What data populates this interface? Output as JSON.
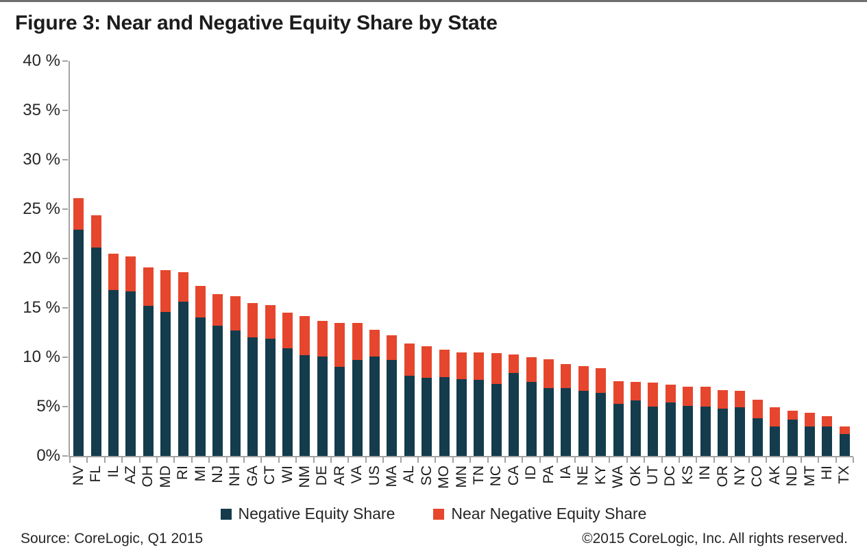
{
  "title": "Figure 3: Near and Negative Equity Share by State",
  "footer": {
    "source_note": "Source: CoreLogic, Q1  2015",
    "copyright_note": "©2015 CoreLogic, Inc. All rights reserved."
  },
  "colors": {
    "negative_equity": "#143C4D",
    "near_negative_equity": "#E6462D",
    "axis": "#a3a3a3",
    "text": "#262626"
  },
  "legend": {
    "items": [
      {
        "label": "Negative Equity Share",
        "color": "#143C4D"
      },
      {
        "label": "Near Negative Equity Share",
        "color": "#E6462D"
      }
    ]
  },
  "chart_data": {
    "type": "bar",
    "stacked": true,
    "title": "Figure 3: Near and Negative Equity Share by State",
    "xlabel": "",
    "ylabel": "",
    "ylim": [
      0,
      40
    ],
    "y_tick_step": 5,
    "grid": false,
    "legend_position": "bottom",
    "y_ticks": [
      {
        "value": 40,
        "label": "40 %"
      },
      {
        "value": 35,
        "label": "35 %"
      },
      {
        "value": 30,
        "label": "30 %"
      },
      {
        "value": 25,
        "label": "25 %"
      },
      {
        "value": 20,
        "label": "20 %"
      },
      {
        "value": 15,
        "label": "15 %"
      },
      {
        "value": 10,
        "label": "10 %"
      },
      {
        "value": 5,
        "label": "5%"
      },
      {
        "value": 0,
        "label": "0%"
      }
    ],
    "categories": [
      "NV",
      "FL",
      "IL",
      "AZ",
      "OH",
      "MD",
      "RI",
      "MI",
      "NJ",
      "NH",
      "GA",
      "CT",
      "WI",
      "NM",
      "DE",
      "AR",
      "VA",
      "US",
      "MA",
      "AL",
      "SC",
      "MO",
      "MN",
      "TN",
      "NC",
      "CA",
      "ID",
      "PA",
      "IA",
      "NE",
      "KY",
      "WA",
      "OK",
      "UT",
      "DC",
      "KS",
      "IN",
      "OR",
      "NY",
      "CO",
      "AK",
      "ND",
      "MT",
      "HI",
      "TX"
    ],
    "series": [
      {
        "name": "Negative Equity Share",
        "color": "#143C4D",
        "values": [
          22.9,
          21.1,
          16.8,
          16.7,
          15.2,
          14.6,
          15.6,
          14.0,
          13.2,
          12.7,
          12.0,
          11.9,
          10.9,
          10.2,
          10.1,
          9.0,
          9.7,
          10.1,
          9.7,
          8.1,
          7.9,
          8.0,
          7.8,
          7.7,
          7.3,
          8.4,
          7.5,
          6.9,
          6.9,
          6.6,
          6.4,
          5.3,
          5.6,
          5.0,
          5.4,
          5.1,
          5.0,
          4.8,
          4.9,
          3.8,
          3.0,
          3.7,
          3.0,
          3.0,
          2.2
        ]
      },
      {
        "name": "Near Negative Equity Share",
        "color": "#E6462D",
        "values": [
          3.2,
          3.3,
          3.7,
          3.5,
          3.9,
          4.2,
          3.0,
          3.2,
          3.2,
          3.5,
          3.5,
          3.4,
          3.6,
          4.0,
          3.6,
          4.5,
          3.8,
          2.7,
          2.5,
          3.3,
          3.2,
          2.8,
          2.7,
          2.8,
          3.1,
          1.9,
          2.5,
          2.9,
          2.4,
          2.5,
          2.5,
          2.3,
          1.9,
          2.4,
          1.8,
          1.9,
          2.0,
          1.9,
          1.7,
          1.9,
          1.9,
          0.9,
          1.4,
          1.0,
          0.8
        ]
      }
    ]
  }
}
